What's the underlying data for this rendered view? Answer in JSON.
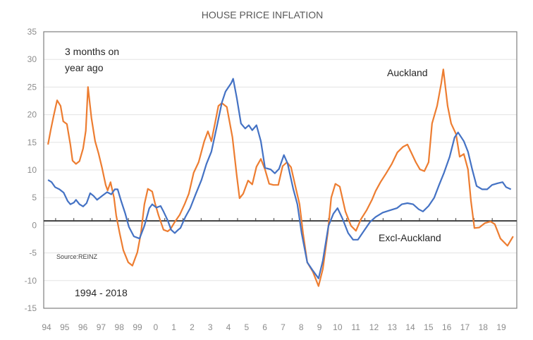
{
  "chart_data": {
    "type": "line",
    "title": "HOUSE PRICE INFLATION",
    "xlabel": "",
    "ylabel": "",
    "ylim": [
      -15,
      35
    ],
    "yticks": [
      35,
      30,
      25,
      20,
      15,
      10,
      5,
      0,
      -5,
      -10,
      -15
    ],
    "xlim": [
      1994,
      2019.85
    ],
    "xtick_labels": [
      "94",
      "95",
      "96",
      "97",
      "98",
      "99",
      "0",
      "1",
      "2",
      "3",
      "4",
      "5",
      "6",
      "7",
      "8",
      "9",
      "10",
      "11",
      "12",
      "13",
      "14",
      "15",
      "16",
      "17",
      "18",
      "19"
    ],
    "axis_cross_value": 0.8,
    "grid": true,
    "legend": "none",
    "annotations": {
      "subtitle_line1": "3 months on",
      "subtitle_line2": "year ago",
      "period": "1994 - 2018",
      "source": "Source:REINZ",
      "auckland_label": "Auckland",
      "excl_label": "Excl-Auckland"
    },
    "series": [
      {
        "name": "Auckland",
        "color": "#ed7d31",
        "points": [
          [
            1994.08,
            14.6
          ],
          [
            1994.23,
            17.2
          ],
          [
            1994.39,
            19.8
          ],
          [
            1994.58,
            22.6
          ],
          [
            1994.77,
            21.6
          ],
          [
            1994.92,
            18.8
          ],
          [
            1995.12,
            18.3
          ],
          [
            1995.31,
            14.6
          ],
          [
            1995.43,
            11.7
          ],
          [
            1995.62,
            11.1
          ],
          [
            1995.81,
            11.6
          ],
          [
            1996.01,
            13.9
          ],
          [
            1996.16,
            17.1
          ],
          [
            1996.28,
            25.0
          ],
          [
            1996.47,
            19.4
          ],
          [
            1996.67,
            15.2
          ],
          [
            1996.86,
            13.0
          ],
          [
            1997.05,
            10.4
          ],
          [
            1997.25,
            7.3
          ],
          [
            1997.36,
            6.3
          ],
          [
            1997.52,
            7.8
          ],
          [
            1997.71,
            5.0
          ],
          [
            1997.83,
            1.8
          ],
          [
            1998.02,
            -1.4
          ],
          [
            1998.22,
            -4.5
          ],
          [
            1998.49,
            -6.7
          ],
          [
            1998.72,
            -7.3
          ],
          [
            1998.99,
            -4.9
          ],
          [
            1999.19,
            -1.4
          ],
          [
            1999.38,
            3.8
          ],
          [
            1999.57,
            6.6
          ],
          [
            1999.81,
            6.1
          ],
          [
            1999.96,
            4.0
          ],
          [
            2000.16,
            1.8
          ],
          [
            2000.43,
            -0.8
          ],
          [
            2000.66,
            -1.1
          ],
          [
            2000.81,
            -0.7
          ],
          [
            2001.05,
            0.6
          ],
          [
            2001.32,
            1.9
          ],
          [
            2001.59,
            3.8
          ],
          [
            2001.82,
            5.7
          ],
          [
            2002.09,
            9.5
          ],
          [
            2002.36,
            11.4
          ],
          [
            2002.67,
            15.2
          ],
          [
            2002.87,
            17.0
          ],
          [
            2003.06,
            15.2
          ],
          [
            2003.26,
            18.4
          ],
          [
            2003.45,
            21.6
          ],
          [
            2003.64,
            22.1
          ],
          [
            2003.91,
            21.4
          ],
          [
            2004.22,
            15.9
          ],
          [
            2004.46,
            8.9
          ],
          [
            2004.61,
            4.9
          ],
          [
            2004.81,
            5.7
          ],
          [
            2005.08,
            8.1
          ],
          [
            2005.31,
            7.4
          ],
          [
            2005.54,
            10.6
          ],
          [
            2005.78,
            12.0
          ],
          [
            2006.01,
            10.1
          ],
          [
            2006.24,
            7.5
          ],
          [
            2006.47,
            7.3
          ],
          [
            2006.74,
            7.3
          ],
          [
            2006.98,
            10.7
          ],
          [
            2007.21,
            11.4
          ],
          [
            2007.44,
            10.5
          ],
          [
            2007.71,
            6.6
          ],
          [
            2007.91,
            3.8
          ],
          [
            2008.1,
            -1.4
          ],
          [
            2008.33,
            -6.7
          ],
          [
            2008.64,
            -8.4
          ],
          [
            2008.95,
            -11.0
          ],
          [
            2009.19,
            -7.9
          ],
          [
            2009.46,
            -1.4
          ],
          [
            2009.65,
            5.0
          ],
          [
            2009.88,
            7.5
          ],
          [
            2010.12,
            7.0
          ],
          [
            2010.43,
            2.5
          ],
          [
            2010.74,
            -0.1
          ],
          [
            2011.01,
            -1.0
          ],
          [
            2011.28,
            1.1
          ],
          [
            2011.59,
            2.7
          ],
          [
            2011.9,
            4.7
          ],
          [
            2012.09,
            6.2
          ],
          [
            2012.36,
            7.8
          ],
          [
            2012.67,
            9.4
          ],
          [
            2012.98,
            11.1
          ],
          [
            2013.29,
            13.2
          ],
          [
            2013.6,
            14.2
          ],
          [
            2013.84,
            14.6
          ],
          [
            2014.07,
            13.0
          ],
          [
            2014.3,
            11.4
          ],
          [
            2014.53,
            10.1
          ],
          [
            2014.77,
            9.8
          ],
          [
            2015.0,
            11.4
          ],
          [
            2015.19,
            18.4
          ],
          [
            2015.47,
            21.6
          ],
          [
            2015.7,
            25.7
          ],
          [
            2015.81,
            28.2
          ],
          [
            2016.05,
            21.6
          ],
          [
            2016.24,
            18.4
          ],
          [
            2016.51,
            16.5
          ],
          [
            2016.71,
            12.4
          ],
          [
            2016.94,
            12.9
          ],
          [
            2017.17,
            10.1
          ],
          [
            2017.33,
            4.4
          ],
          [
            2017.52,
            -0.5
          ],
          [
            2017.79,
            -0.4
          ],
          [
            2018.1,
            0.4
          ],
          [
            2018.41,
            0.7
          ],
          [
            2018.64,
            0.2
          ],
          [
            2018.95,
            -2.4
          ],
          [
            2019.34,
            -3.7
          ],
          [
            2019.65,
            -2.0
          ]
        ]
      },
      {
        "name": "Excl-Auckland",
        "color": "#4472c4",
        "points": [
          [
            1994.08,
            8.2
          ],
          [
            1994.28,
            7.8
          ],
          [
            1994.47,
            6.9
          ],
          [
            1994.71,
            6.5
          ],
          [
            1994.94,
            5.9
          ],
          [
            1995.16,
            4.4
          ],
          [
            1995.31,
            3.8
          ],
          [
            1995.5,
            4.1
          ],
          [
            1995.62,
            4.6
          ],
          [
            1995.81,
            3.8
          ],
          [
            1996.01,
            3.4
          ],
          [
            1996.2,
            4.0
          ],
          [
            1996.4,
            5.8
          ],
          [
            1996.59,
            5.3
          ],
          [
            1996.78,
            4.6
          ],
          [
            1997.05,
            5.3
          ],
          [
            1997.33,
            6.0
          ],
          [
            1997.56,
            5.6
          ],
          [
            1997.75,
            6.5
          ],
          [
            1997.91,
            6.5
          ],
          [
            1998.1,
            4.4
          ],
          [
            1998.33,
            2.1
          ],
          [
            1998.53,
            -0.3
          ],
          [
            1998.8,
            -2.0
          ],
          [
            1999.11,
            -2.4
          ],
          [
            1999.38,
            -0.1
          ],
          [
            1999.65,
            3.1
          ],
          [
            1999.81,
            3.8
          ],
          [
            2000.04,
            3.2
          ],
          [
            2000.27,
            3.5
          ],
          [
            2000.43,
            2.5
          ],
          [
            2000.66,
            0.9
          ],
          [
            2000.85,
            -0.8
          ],
          [
            2001.05,
            -1.4
          ],
          [
            2001.24,
            -0.8
          ],
          [
            2001.36,
            -0.5
          ],
          [
            2001.63,
            1.5
          ],
          [
            2001.9,
            3.1
          ],
          [
            2002.21,
            5.7
          ],
          [
            2002.52,
            8.2
          ],
          [
            2002.79,
            11.1
          ],
          [
            2003.06,
            13.3
          ],
          [
            2003.37,
            18.0
          ],
          [
            2003.64,
            22.2
          ],
          [
            2003.84,
            24.2
          ],
          [
            2004.15,
            25.7
          ],
          [
            2004.26,
            26.5
          ],
          [
            2004.46,
            23.0
          ],
          [
            2004.69,
            18.4
          ],
          [
            2004.92,
            17.5
          ],
          [
            2005.12,
            18.1
          ],
          [
            2005.31,
            17.2
          ],
          [
            2005.54,
            18.1
          ],
          [
            2005.78,
            15.2
          ],
          [
            2006.01,
            10.4
          ],
          [
            2006.32,
            10.1
          ],
          [
            2006.55,
            9.4
          ],
          [
            2006.78,
            10.2
          ],
          [
            2007.05,
            12.7
          ],
          [
            2007.25,
            11.2
          ],
          [
            2007.56,
            6.6
          ],
          [
            2007.79,
            3.8
          ],
          [
            2008.02,
            -1.4
          ],
          [
            2008.33,
            -6.7
          ],
          [
            2008.64,
            -8.2
          ],
          [
            2008.95,
            -9.6
          ],
          [
            2009.19,
            -6.4
          ],
          [
            2009.5,
            -0.1
          ],
          [
            2009.77,
            2.1
          ],
          [
            2010.0,
            3.1
          ],
          [
            2010.27,
            1.2
          ],
          [
            2010.58,
            -1.4
          ],
          [
            2010.85,
            -2.6
          ],
          [
            2011.12,
            -2.6
          ],
          [
            2011.43,
            -1.1
          ],
          [
            2011.78,
            0.6
          ],
          [
            2012.09,
            1.5
          ],
          [
            2012.48,
            2.3
          ],
          [
            2012.87,
            2.7
          ],
          [
            2013.26,
            3.1
          ],
          [
            2013.53,
            3.8
          ],
          [
            2013.84,
            4.0
          ],
          [
            2014.15,
            3.8
          ],
          [
            2014.46,
            2.9
          ],
          [
            2014.69,
            2.5
          ],
          [
            2015.0,
            3.5
          ],
          [
            2015.31,
            5.0
          ],
          [
            2015.58,
            7.3
          ],
          [
            2015.85,
            9.5
          ],
          [
            2016.16,
            12.4
          ],
          [
            2016.43,
            15.9
          ],
          [
            2016.62,
            16.8
          ],
          [
            2016.94,
            15.2
          ],
          [
            2017.17,
            13.3
          ],
          [
            2017.4,
            10.1
          ],
          [
            2017.64,
            7.1
          ],
          [
            2017.95,
            6.5
          ],
          [
            2018.22,
            6.5
          ],
          [
            2018.49,
            7.3
          ],
          [
            2018.8,
            7.6
          ],
          [
            2019.07,
            7.8
          ],
          [
            2019.26,
            6.9
          ],
          [
            2019.53,
            6.5
          ]
        ]
      }
    ]
  }
}
